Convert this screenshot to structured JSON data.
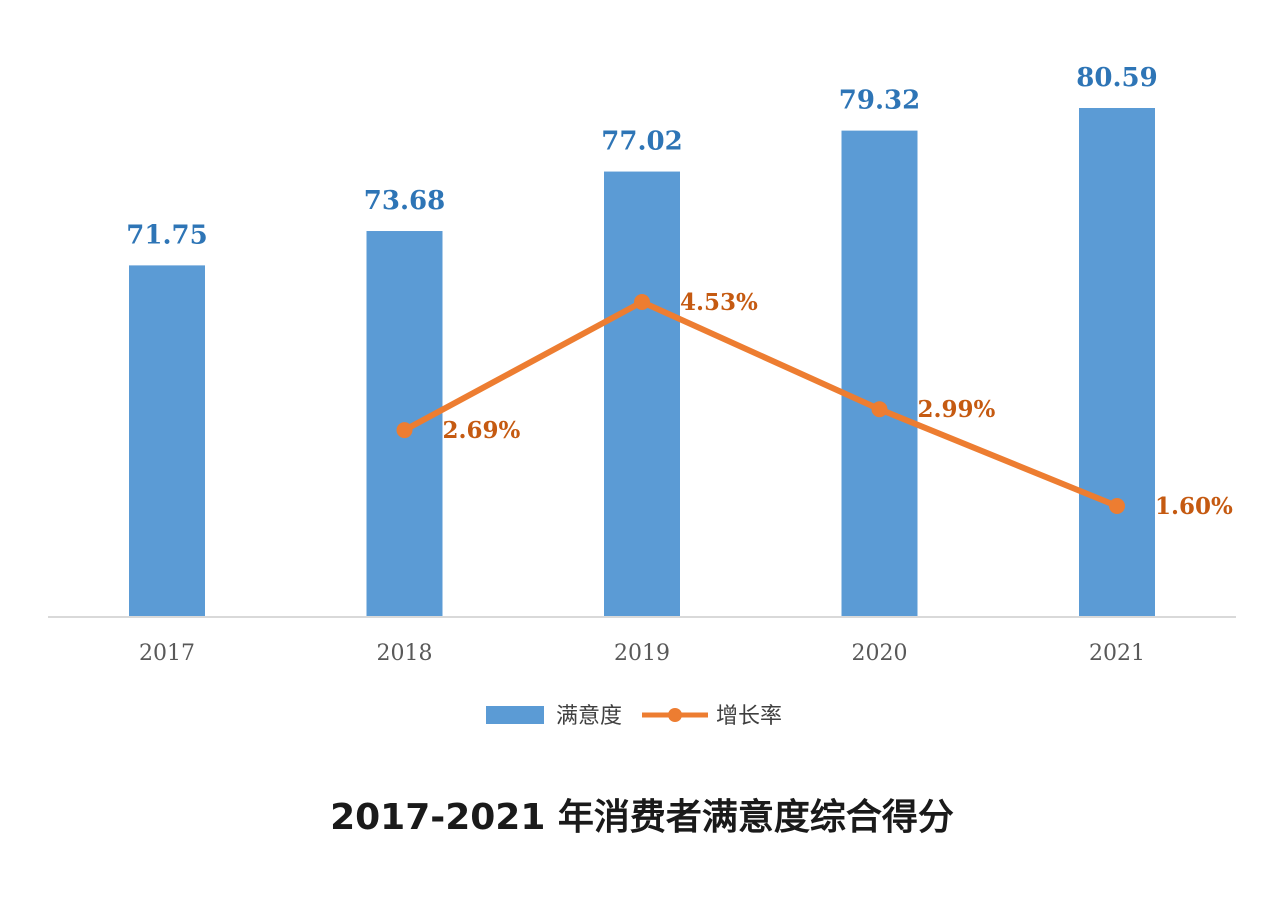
{
  "chart_data": {
    "type": "bar",
    "title": "2017-2021 年消费者满意度综合得分",
    "categories": [
      "2017",
      "2018",
      "2019",
      "2020",
      "2021"
    ],
    "series": [
      {
        "name": "满意度",
        "type": "bar",
        "values": [
          71.75,
          73.68,
          77.02,
          79.32,
          80.59
        ],
        "labels": [
          "71.75",
          "73.68",
          "77.02",
          "79.32",
          "80.59"
        ],
        "color": "#5B9BD5",
        "label_color": "#2E75B6"
      },
      {
        "name": "增长率",
        "type": "line",
        "values": [
          null,
          2.69,
          4.53,
          2.99,
          1.6
        ],
        "labels": [
          "",
          "2.69%",
          "4.53%",
          "2.99%",
          "1.60%"
        ],
        "color": "#ED7D31",
        "label_color": "#C55A11"
      }
    ],
    "xlabel": "",
    "ylabel": "",
    "legend": "bottom",
    "grid": false
  }
}
